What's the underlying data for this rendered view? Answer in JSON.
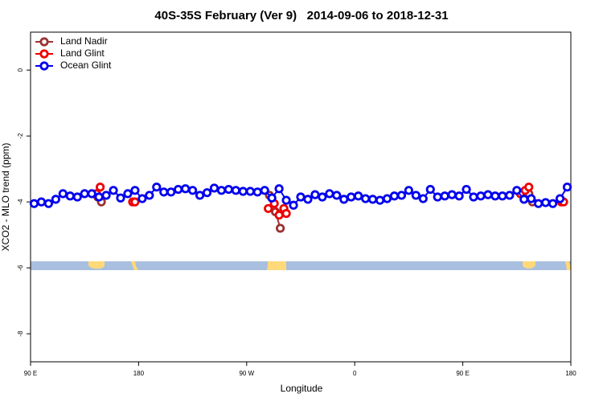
{
  "chart_data": {
    "type": "line",
    "title": "40S-35S February (Ver 9)   2014-09-06 to 2018-12-31",
    "xlabel": "Longitude",
    "ylabel": "XCO2 - MLO trend (ppm)",
    "xlim": [
      90,
      540
    ],
    "xticks": [
      {
        "value": 90,
        "label": "90 E"
      },
      180,
      {
        "value": 270,
        "label": "90 W"
      },
      {
        "value": 360,
        "label": "0"
      },
      {
        "value": 450,
        "label": "90 E"
      },
      {
        "value": 540,
        "label": "180"
      }
    ],
    "ylim": [
      -8.85,
      1.15
    ],
    "yticks": [
      0,
      -2,
      -4,
      -6,
      -8
    ],
    "grid": false,
    "legend": "upper left",
    "series": [
      {
        "name": "Land Nadir",
        "color": "#993333",
        "x": [
          146,
          149,
          150,
          289,
          294,
          298,
          400,
          505,
          508
        ],
        "values": [
          -3.85,
          -4.0,
          null,
          -3.8,
          -4.3,
          -4.8,
          null,
          -3.75,
          -4.0
        ]
      },
      {
        "name": "Land Glint",
        "color": "#ee0000",
        "x": [
          145,
          148,
          152,
          175,
          177,
          200,
          288,
          293,
          297,
          301,
          303,
          400,
          498,
          502,
          505,
          520,
          532,
          534
        ],
        "values": [
          -3.75,
          -3.55,
          null,
          -4.0,
          -4.0,
          null,
          -4.2,
          -4.05,
          -4.4,
          -4.2,
          -4.35,
          null,
          -3.75,
          -3.65,
          -3.55,
          null,
          -4.0,
          -4.0
        ]
      },
      {
        "name": "Ocean Glint",
        "color": "#0000ee",
        "x": [
          93,
          99,
          105,
          111,
          117,
          123,
          129,
          135,
          141,
          147,
          153,
          159,
          165,
          171,
          177,
          183,
          189,
          195,
          201,
          207,
          213,
          219,
          225,
          231,
          237,
          243,
          249,
          255,
          261,
          267,
          273,
          279,
          285,
          291,
          297,
          303,
          309,
          315,
          321,
          327,
          333,
          339,
          345,
          351,
          357,
          363,
          369,
          375,
          381,
          387,
          393,
          399,
          405,
          411,
          417,
          423,
          429,
          435,
          441,
          447,
          453,
          459,
          465,
          471,
          477,
          483,
          489,
          495,
          501,
          507,
          513,
          519,
          525,
          531,
          537
        ],
        "values": [
          -4.05,
          -4.0,
          -4.05,
          -3.92,
          -3.75,
          -3.82,
          -3.85,
          -3.75,
          -3.75,
          -3.85,
          -3.8,
          -3.65,
          -3.88,
          -3.75,
          -3.65,
          -3.9,
          -3.8,
          -3.55,
          -3.7,
          -3.7,
          -3.62,
          -3.6,
          -3.65,
          -3.8,
          -3.72,
          -3.58,
          -3.65,
          -3.62,
          -3.65,
          -3.68,
          -3.68,
          -3.7,
          -3.65,
          -3.88,
          -3.6,
          -3.95,
          -4.1,
          -3.85,
          -3.92,
          -3.78,
          -3.85,
          -3.75,
          -3.8,
          -3.92,
          -3.85,
          -3.82,
          -3.9,
          -3.92,
          -3.95,
          -3.9,
          -3.82,
          -3.8,
          -3.65,
          -3.8,
          -3.9,
          -3.62,
          -3.85,
          -3.82,
          -3.78,
          -3.82,
          -3.62,
          -3.85,
          -3.82,
          -3.78,
          -3.82,
          -3.82,
          -3.8,
          -3.65,
          -3.92,
          -3.9,
          -4.05,
          -4.02,
          -4.05,
          -3.9,
          -3.55
        ]
      }
    ]
  }
}
